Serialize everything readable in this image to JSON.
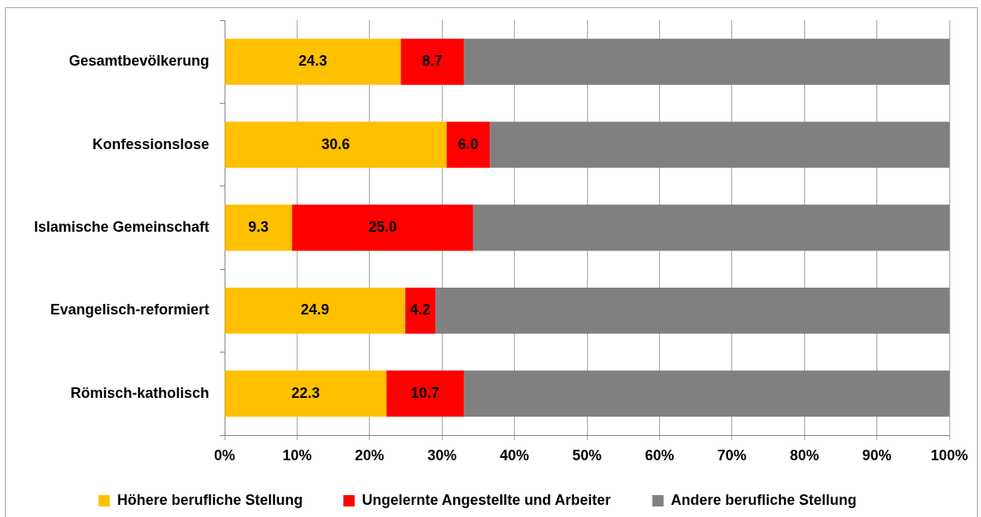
{
  "chart_data": {
    "type": "bar",
    "orientation": "horizontal",
    "stacked": true,
    "categories": [
      "Gesamtbevölkerung",
      "Konfessionslose",
      "Islamische Gemeinschaft",
      "Evangelisch-reformiert",
      "Römisch-katholisch"
    ],
    "series": [
      {
        "name": "Höhere berufliche Stellung",
        "color": "#ffc000",
        "values": [
          24.3,
          30.6,
          9.3,
          24.9,
          22.3
        ],
        "value_labels": [
          "24.3",
          "30.6",
          "9.3",
          "24.9",
          "22.3"
        ]
      },
      {
        "name": "Ungelernte Angestellte und Arbeiter",
        "color": "#ff0000",
        "values": [
          8.7,
          6.0,
          25.0,
          4.2,
          10.7
        ],
        "value_labels": [
          "8.7",
          "6.0",
          "25.0",
          "4.2",
          "10.7"
        ]
      },
      {
        "name": "Andere berufliche Stellung",
        "color": "#808080",
        "values": [
          67.0,
          63.4,
          65.7,
          70.9,
          67.0
        ]
      }
    ],
    "xlim": [
      0,
      100
    ],
    "xticks": [
      {
        "value": 0,
        "label": "0%"
      },
      {
        "value": 10,
        "label": "10%"
      },
      {
        "value": 20,
        "label": "20%"
      },
      {
        "value": 30,
        "label": "30%"
      },
      {
        "value": 40,
        "label": "40%"
      },
      {
        "value": 50,
        "label": "50%"
      },
      {
        "value": 60,
        "label": "60%"
      },
      {
        "value": 70,
        "label": "70%"
      },
      {
        "value": 80,
        "label": "80%"
      },
      {
        "value": 90,
        "label": "90%"
      },
      {
        "value": 100,
        "label": "100%"
      }
    ],
    "grid": "x",
    "legend": "bottom"
  }
}
